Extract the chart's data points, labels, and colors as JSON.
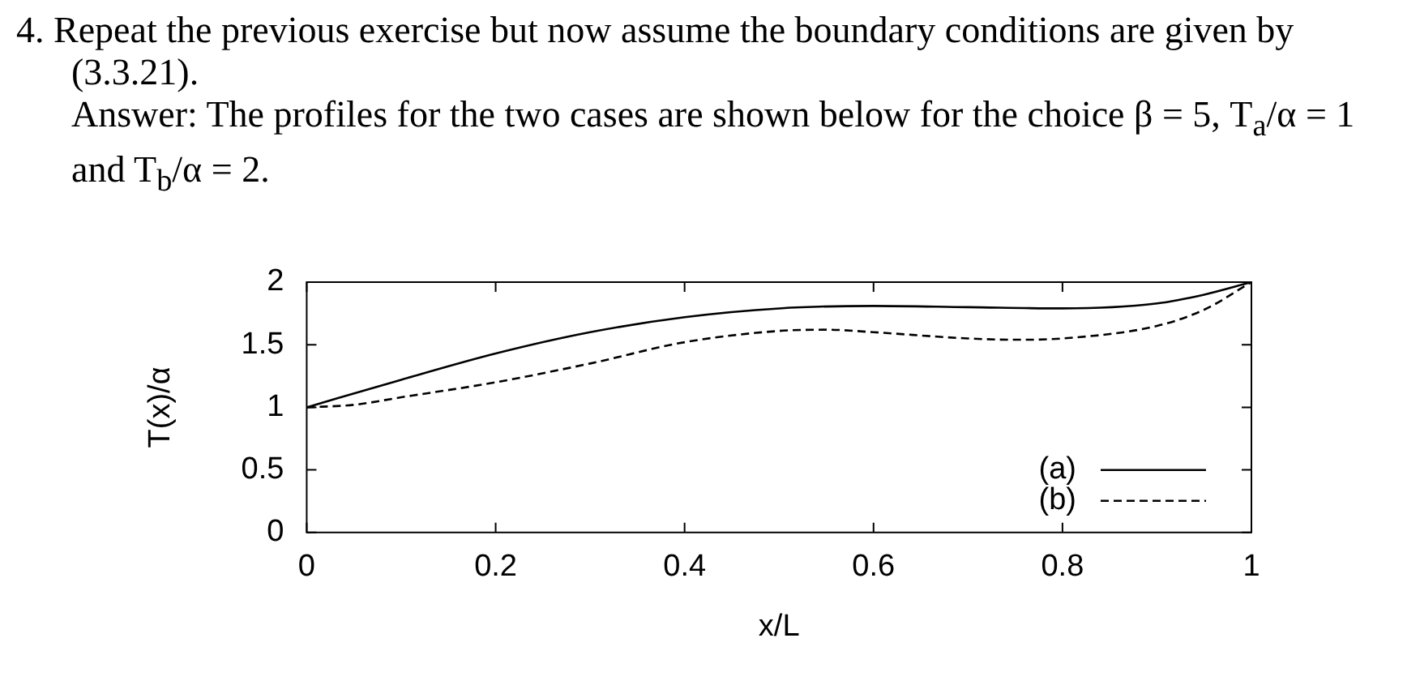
{
  "chart_data": {
    "type": "line",
    "annotations": [
      "4. Repeat the previous exercise but now assume the boundary conditions are given by (3.3.21).",
      "Answer: The profiles for the two cases are shown below for the choice β = 5, T$_{a}$/α = 1 and T$_{b}$/α = 2."
    ],
    "xlabel": "x/L",
    "ylabel": "T(x)/α",
    "xlim": [
      0,
      1
    ],
    "xticks": [
      0,
      0.2,
      0.4,
      0.6,
      0.8,
      1
    ],
    "ylim": [
      0,
      2
    ],
    "yticks": [
      0,
      0.5,
      1,
      1.5,
      2
    ],
    "grid": false,
    "legend": "bottom right",
    "marker": "none",
    "series": [
      {
        "name": "(a)",
        "color": "#000000",
        "line_style": "solid",
        "x": [
          0,
          0.1,
          0.2,
          0.3,
          0.4,
          0.5,
          0.6,
          0.7,
          0.8,
          0.9,
          0.95,
          1
        ],
        "values": [
          1,
          1.22,
          1.43,
          1.6,
          1.72,
          1.79,
          1.81,
          1.8,
          1.79,
          1.83,
          1.9,
          2
        ]
      },
      {
        "name": "(b)",
        "color": "#000000",
        "line_style": "dashed",
        "x": [
          0,
          0.05,
          0.1,
          0.2,
          0.3,
          0.4,
          0.5,
          0.55,
          0.6,
          0.7,
          0.75,
          0.8,
          0.9,
          0.95,
          1
        ],
        "values": [
          1,
          1.02,
          1.08,
          1.2,
          1.35,
          1.52,
          1.61,
          1.62,
          1.6,
          1.55,
          1.54,
          1.55,
          1.65,
          1.78,
          2
        ]
      }
    ]
  }
}
